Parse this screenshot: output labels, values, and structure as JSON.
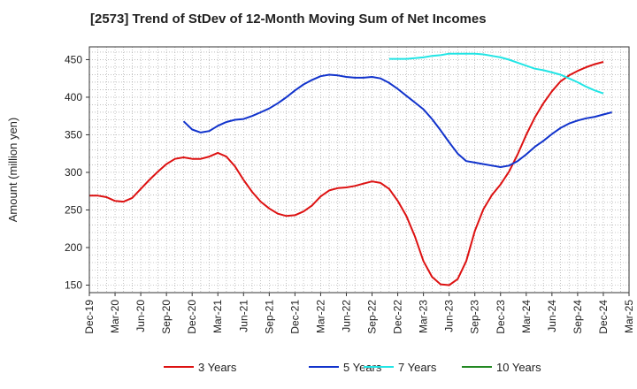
{
  "chart_data": {
    "type": "line",
    "title": "[2573]  Trend of StDev of 12-Month Moving Sum of Net Incomes",
    "ylabel": "Amount (million yen)",
    "xlabel": "",
    "ylim": [
      140,
      467
    ],
    "yticks": [
      150,
      200,
      250,
      300,
      350,
      400,
      450
    ],
    "xlim": [
      "2019-12",
      "2025-03"
    ],
    "xticks": [
      "Dec-19",
      "Mar-20",
      "Jun-20",
      "Sep-20",
      "Dec-20",
      "Mar-21",
      "Jun-21",
      "Sep-21",
      "Dec-21",
      "Mar-22",
      "Jun-22",
      "Sep-22",
      "Dec-22",
      "Mar-23",
      "Jun-23",
      "Sep-23",
      "Dec-23",
      "Mar-24",
      "Jun-24",
      "Sep-24",
      "Dec-24",
      "Mar-25"
    ],
    "grid": true,
    "legend_position": "bottom",
    "series": [
      {
        "name": "3 Years",
        "color": "#dd1111",
        "points": [
          [
            "2019-12",
            269
          ],
          [
            "2020-01",
            269
          ],
          [
            "2020-02",
            267
          ],
          [
            "2020-03",
            262
          ],
          [
            "2020-04",
            261
          ],
          [
            "2020-05",
            266
          ],
          [
            "2020-06",
            278
          ],
          [
            "2020-07",
            290
          ],
          [
            "2020-08",
            301
          ],
          [
            "2020-09",
            311
          ],
          [
            "2020-10",
            318
          ],
          [
            "2020-11",
            320
          ],
          [
            "2020-12",
            318
          ],
          [
            "2021-01",
            318
          ],
          [
            "2021-02",
            321
          ],
          [
            "2021-03",
            326
          ],
          [
            "2021-04",
            321
          ],
          [
            "2021-05",
            308
          ],
          [
            "2021-06",
            290
          ],
          [
            "2021-07",
            274
          ],
          [
            "2021-08",
            261
          ],
          [
            "2021-09",
            252
          ],
          [
            "2021-10",
            245
          ],
          [
            "2021-11",
            242
          ],
          [
            "2021-12",
            243
          ],
          [
            "2022-01",
            248
          ],
          [
            "2022-02",
            256
          ],
          [
            "2022-03",
            268
          ],
          [
            "2022-04",
            276
          ],
          [
            "2022-05",
            279
          ],
          [
            "2022-06",
            280
          ],
          [
            "2022-07",
            282
          ],
          [
            "2022-08",
            285
          ],
          [
            "2022-09",
            288
          ],
          [
            "2022-10",
            286
          ],
          [
            "2022-11",
            278
          ],
          [
            "2022-12",
            262
          ],
          [
            "2023-01",
            242
          ],
          [
            "2023-02",
            215
          ],
          [
            "2023-03",
            182
          ],
          [
            "2023-04",
            161
          ],
          [
            "2023-05",
            151
          ],
          [
            "2023-06",
            150
          ],
          [
            "2023-07",
            158
          ],
          [
            "2023-08",
            182
          ],
          [
            "2023-09",
            222
          ],
          [
            "2023-10",
            251
          ],
          [
            "2023-11",
            270
          ],
          [
            "2023-12",
            284
          ],
          [
            "2024-01",
            301
          ],
          [
            "2024-02",
            324
          ],
          [
            "2024-03",
            350
          ],
          [
            "2024-04",
            373
          ],
          [
            "2024-05",
            392
          ],
          [
            "2024-06",
            408
          ],
          [
            "2024-07",
            421
          ],
          [
            "2024-08",
            429
          ],
          [
            "2024-09",
            435
          ],
          [
            "2024-10",
            440
          ],
          [
            "2024-11",
            444
          ],
          [
            "2024-12",
            447
          ]
        ]
      },
      {
        "name": "5 Years",
        "color": "#1133cc",
        "points": [
          [
            "2020-11",
            368
          ],
          [
            "2020-12",
            357
          ],
          [
            "2021-01",
            353
          ],
          [
            "2021-02",
            355
          ],
          [
            "2021-03",
            362
          ],
          [
            "2021-04",
            367
          ],
          [
            "2021-05",
            370
          ],
          [
            "2021-06",
            371
          ],
          [
            "2021-07",
            375
          ],
          [
            "2021-08",
            380
          ],
          [
            "2021-09",
            385
          ],
          [
            "2021-10",
            392
          ],
          [
            "2021-11",
            400
          ],
          [
            "2021-12",
            409
          ],
          [
            "2022-01",
            417
          ],
          [
            "2022-02",
            423
          ],
          [
            "2022-03",
            428
          ],
          [
            "2022-04",
            430
          ],
          [
            "2022-05",
            429
          ],
          [
            "2022-06",
            427
          ],
          [
            "2022-07",
            426
          ],
          [
            "2022-08",
            426
          ],
          [
            "2022-09",
            427
          ],
          [
            "2022-10",
            425
          ],
          [
            "2022-11",
            419
          ],
          [
            "2022-12",
            411
          ],
          [
            "2023-01",
            402
          ],
          [
            "2023-02",
            393
          ],
          [
            "2023-03",
            384
          ],
          [
            "2023-04",
            371
          ],
          [
            "2023-05",
            356
          ],
          [
            "2023-06",
            340
          ],
          [
            "2023-07",
            325
          ],
          [
            "2023-08",
            315
          ],
          [
            "2023-09",
            313
          ],
          [
            "2023-10",
            311
          ],
          [
            "2023-11",
            309
          ],
          [
            "2023-12",
            307
          ],
          [
            "2024-01",
            309
          ],
          [
            "2024-02",
            315
          ],
          [
            "2024-03",
            324
          ],
          [
            "2024-04",
            334
          ],
          [
            "2024-05",
            342
          ],
          [
            "2024-06",
            351
          ],
          [
            "2024-07",
            359
          ],
          [
            "2024-08",
            365
          ],
          [
            "2024-09",
            369
          ],
          [
            "2024-10",
            372
          ],
          [
            "2024-11",
            374
          ],
          [
            "2024-12",
            377
          ],
          [
            "2025-01",
            380
          ]
        ]
      },
      {
        "name": "7 Years",
        "color": "#22e5e5",
        "points": [
          [
            "2022-11",
            451
          ],
          [
            "2022-12",
            451
          ],
          [
            "2023-01",
            451
          ],
          [
            "2023-02",
            452
          ],
          [
            "2023-03",
            453
          ],
          [
            "2023-04",
            455
          ],
          [
            "2023-05",
            456
          ],
          [
            "2023-06",
            458
          ],
          [
            "2023-07",
            458
          ],
          [
            "2023-08",
            458
          ],
          [
            "2023-09",
            458
          ],
          [
            "2023-10",
            457
          ],
          [
            "2023-11",
            455
          ],
          [
            "2023-12",
            453
          ],
          [
            "2024-01",
            450
          ],
          [
            "2024-02",
            446
          ],
          [
            "2024-03",
            442
          ],
          [
            "2024-04",
            438
          ],
          [
            "2024-05",
            436
          ],
          [
            "2024-06",
            433
          ],
          [
            "2024-07",
            430
          ],
          [
            "2024-08",
            425
          ],
          [
            "2024-09",
            420
          ],
          [
            "2024-10",
            414
          ],
          [
            "2024-11",
            409
          ],
          [
            "2024-12",
            405
          ]
        ]
      },
      {
        "name": "10 Years",
        "color": "#228822",
        "points": []
      }
    ]
  }
}
